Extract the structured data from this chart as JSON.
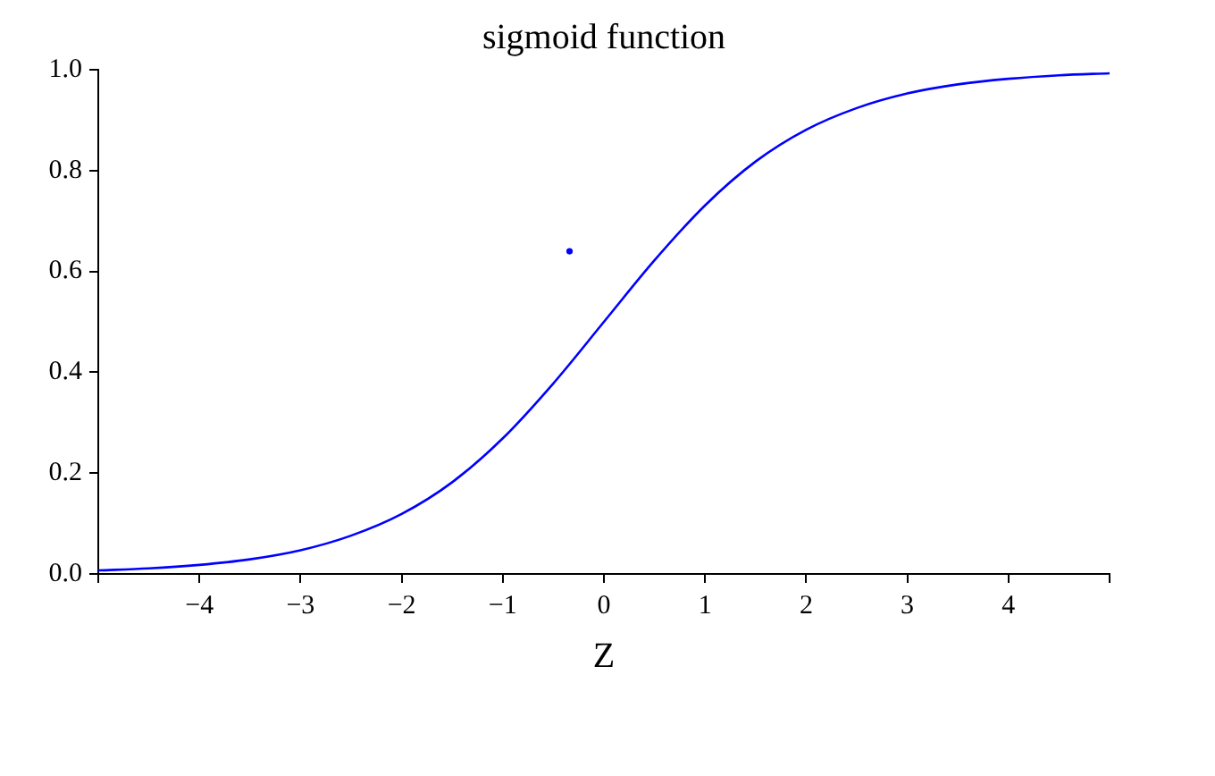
{
  "chart_data": {
    "type": "line",
    "title": "sigmoid function",
    "xlabel": "Z",
    "xlim": [
      -5,
      5
    ],
    "ylim": [
      0,
      1
    ],
    "xticks": [
      {
        "value": -5,
        "label": null
      },
      {
        "value": -4,
        "label": "−4"
      },
      {
        "value": -3,
        "label": "−3"
      },
      {
        "value": -2,
        "label": "−2"
      },
      {
        "value": -1,
        "label": "−1"
      },
      {
        "value": 0,
        "label": "0"
      },
      {
        "value": 1,
        "label": "1"
      },
      {
        "value": 2,
        "label": "2"
      },
      {
        "value": 3,
        "label": "3"
      },
      {
        "value": 4,
        "label": "4"
      },
      {
        "value": 5,
        "label": null
      }
    ],
    "yticks": [
      {
        "value": 0,
        "label": "0.0"
      },
      {
        "value": 0.2,
        "label": "0.2"
      },
      {
        "value": 0.4,
        "label": "0.4"
      },
      {
        "value": 0.6,
        "label": "0.6"
      },
      {
        "value": 0.8,
        "label": "0.8"
      },
      {
        "value": 1,
        "label": "1.0"
      }
    ],
    "grid": false,
    "legend": false,
    "series": [
      {
        "color": "#0000ff",
        "x": [
          -5,
          -4.5,
          -4,
          -3.5,
          -3,
          -2.5,
          -2,
          -1.5,
          -1,
          -0.5,
          0,
          0.5,
          1,
          1.5,
          2,
          2.5,
          3,
          3.5,
          4,
          4.5,
          5
        ],
        "values": [
          0.007,
          0.011,
          0.018,
          0.029,
          0.047,
          0.076,
          0.119,
          0.182,
          0.269,
          0.378,
          0.5,
          0.622,
          0.731,
          0.818,
          0.881,
          0.924,
          0.953,
          0.971,
          0.982,
          0.989,
          0.993
        ]
      },
      {
        "type": "scatter",
        "color": "#0000ff",
        "marker": "circle",
        "x": [
          -0.34
        ],
        "values": [
          0.64
        ]
      }
    ]
  }
}
